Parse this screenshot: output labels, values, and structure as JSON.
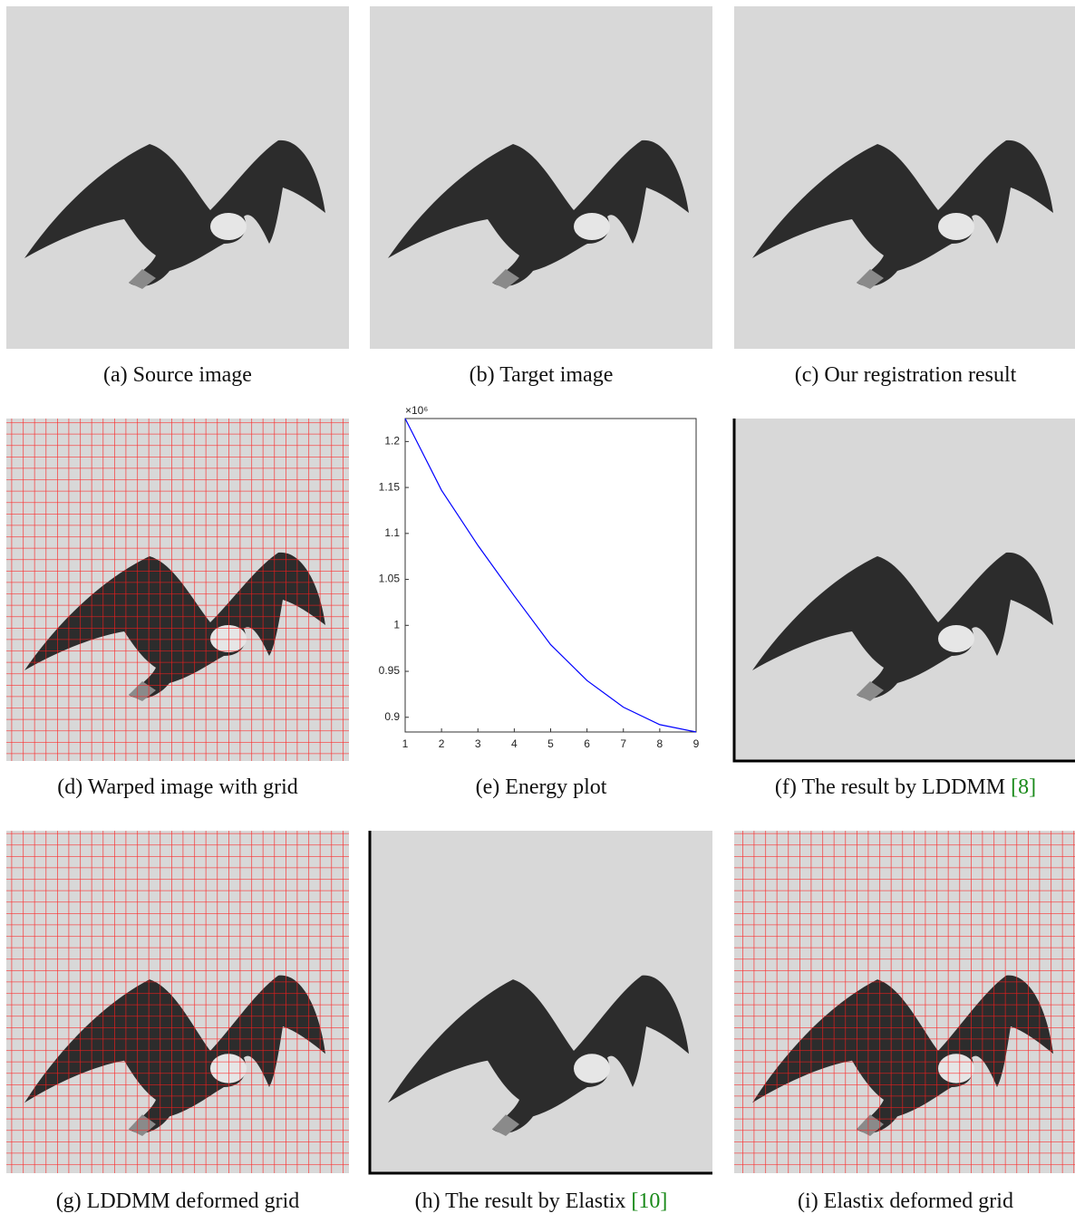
{
  "panels": [
    {
      "caption": "(a) Source image"
    },
    {
      "caption": "(b) Target image"
    },
    {
      "caption": "(c) Our registration result"
    },
    {
      "caption": "(d) Warped image with grid"
    },
    {
      "caption": "(e) Energy plot"
    },
    {
      "caption": "(f) The result by LDDMM",
      "cite": "[8]"
    },
    {
      "caption": "(g) LDDMM deformed grid"
    },
    {
      "caption": "(h) The result by Elastix",
      "cite": "[10]"
    },
    {
      "caption": "(i) Elastix deformed grid"
    }
  ],
  "chart_data": {
    "type": "line",
    "multiplier": "×10⁶",
    "x": [
      1,
      2,
      3,
      4,
      5,
      6,
      7,
      8,
      9
    ],
    "series": [
      {
        "color": "#0000ff",
        "values": [
          1.225,
          1.147,
          1.087,
          1.032,
          0.979,
          0.94,
          0.911,
          0.892,
          0.884
        ]
      }
    ],
    "xlim": [
      1,
      9
    ],
    "xticks": [
      1,
      2,
      3,
      4,
      5,
      6,
      7,
      8,
      9
    ],
    "ylim": [
      0.884,
      1.225
    ],
    "yticks": [
      0.9,
      0.95,
      1,
      1.05,
      1.1,
      1.15,
      1.2
    ]
  }
}
